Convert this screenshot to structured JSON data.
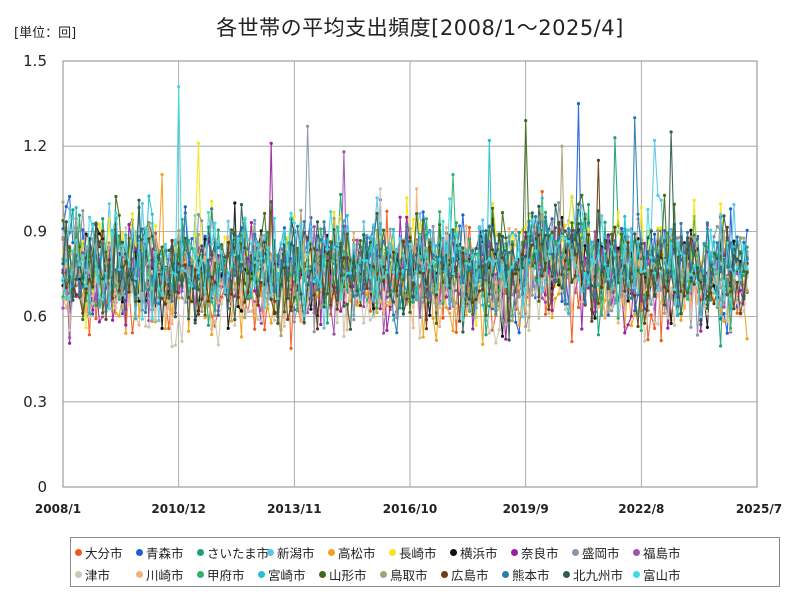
{
  "unit_label": "[単位：回]",
  "chart_title": "各世帯の平均支出頻度[2008/1～2025/4]",
  "chart_data": {
    "type": "line",
    "title": "各世帯の平均支出頻度[2008/1～2025/4]",
    "unit": "[単位：回]",
    "x_start": "2008/1",
    "x_end": "2025/7",
    "x_tick_labels": [
      "2008/1",
      "2010/12",
      "2013/11",
      "2016/10",
      "2019/9",
      "2022/8",
      "2025/7"
    ],
    "y_ticks": [
      "0",
      "0.3",
      "0.6",
      "0.9",
      "1.2",
      "1.5"
    ],
    "ylim": [
      0,
      1.5
    ],
    "grid": true,
    "legend_position": "bottom",
    "series": [
      {
        "name": "大分市",
        "color": "#f05a22",
        "mean": 0.72,
        "amp": 0.12,
        "peak": 1.04
      },
      {
        "name": "青森市",
        "color": "#1f5fd6",
        "mean": 0.78,
        "amp": 0.14,
        "peak": 1.35
      },
      {
        "name": "さいたま市",
        "color": "#1aa36f",
        "mean": 0.77,
        "amp": 0.13,
        "peak": 1.23
      },
      {
        "name": "新潟市",
        "color": "#5bc7e8",
        "mean": 0.79,
        "amp": 0.13,
        "peak": 1.22
      },
      {
        "name": "高松市",
        "color": "#f2a21e",
        "mean": 0.7,
        "amp": 0.12,
        "peak": 1.1
      },
      {
        "name": "長崎市",
        "color": "#f5e617",
        "mean": 0.8,
        "amp": 0.13,
        "peak": 1.21
      },
      {
        "name": "横浜市",
        "color": "#111111",
        "mean": 0.76,
        "amp": 0.11,
        "peak": 1.0
      },
      {
        "name": "奈良市",
        "color": "#9a1fa3",
        "mean": 0.74,
        "amp": 0.12,
        "peak": 1.21
      },
      {
        "name": "盛岡市",
        "color": "#8a96a8",
        "mean": 0.77,
        "amp": 0.12,
        "peak": 1.27
      },
      {
        "name": "福島市",
        "color": "#a24fb0",
        "mean": 0.75,
        "amp": 0.12,
        "peak": 1.18
      },
      {
        "name": "津市",
        "color": "#cfc6b0",
        "mean": 0.68,
        "amp": 0.12,
        "peak": 1.05
      },
      {
        "name": "川崎市",
        "color": "#f2b27a",
        "mean": 0.73,
        "amp": 0.12,
        "peak": 1.05
      },
      {
        "name": "甲府市",
        "color": "#2bb36b",
        "mean": 0.77,
        "amp": 0.12,
        "peak": 1.1
      },
      {
        "name": "宮崎市",
        "color": "#22c2d2",
        "mean": 0.78,
        "amp": 0.12,
        "peak": 1.22
      },
      {
        "name": "山形市",
        "color": "#3f6b1a",
        "mean": 0.79,
        "amp": 0.13,
        "peak": 1.29
      },
      {
        "name": "鳥取市",
        "color": "#a8a07a",
        "mean": 0.76,
        "amp": 0.12,
        "peak": 1.2
      },
      {
        "name": "広島市",
        "color": "#6a3d12",
        "mean": 0.74,
        "amp": 0.12,
        "peak": 1.15
      },
      {
        "name": "熊本市",
        "color": "#2a7da8",
        "mean": 0.79,
        "amp": 0.12,
        "peak": 1.3
      },
      {
        "name": "北九州市",
        "color": "#2f5d4e",
        "mean": 0.77,
        "amp": 0.12,
        "peak": 1.25
      },
      {
        "name": "富山市",
        "color": "#3fd8e8",
        "mean": 0.8,
        "amp": 0.12,
        "peak": 1.41
      }
    ]
  }
}
